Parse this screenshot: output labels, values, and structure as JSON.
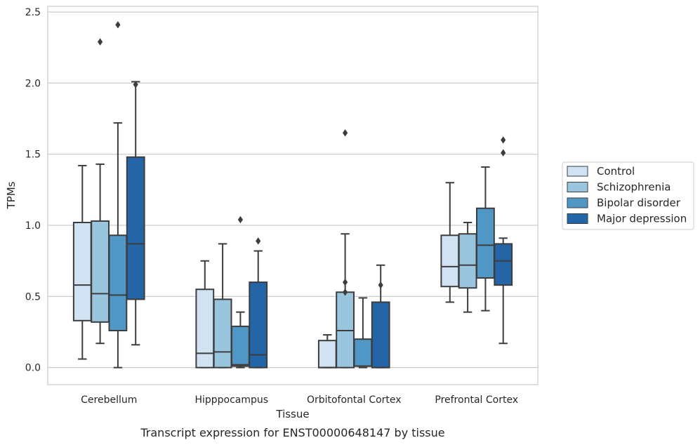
{
  "chart_data": {
    "type": "box",
    "xlabel": "Tissue",
    "ylabel": "TPMs",
    "caption": "Transcript expression for ENST00000648147 by tissue",
    "ylim": [
      -0.12,
      2.54
    ],
    "yticks": [
      0.0,
      0.5,
      1.0,
      1.5,
      2.0,
      2.5
    ],
    "ytick_labels": [
      "0.0",
      "0.5",
      "1.0",
      "1.5",
      "2.0",
      "2.5"
    ],
    "grid": "horizontal",
    "legend_position": "outside-right",
    "categories": [
      "Cerebellum",
      "Hipppocampus",
      "Orbitofontal Cortex",
      "Prefrontal Cortex"
    ],
    "series": [
      {
        "name": "Control",
        "color": "#d1e2f2",
        "boxes": [
          {
            "whislo": 0.06,
            "q1": 0.33,
            "med": 0.58,
            "q3": 1.02,
            "whishi": 1.42,
            "fliers": []
          },
          {
            "whislo": 0.0,
            "q1": 0.0,
            "med": 0.1,
            "q3": 0.55,
            "whishi": 0.75,
            "fliers": []
          },
          {
            "whislo": 0.0,
            "q1": 0.0,
            "med": 0.0,
            "q3": 0.19,
            "whishi": 0.23,
            "fliers": []
          },
          {
            "whislo": 0.46,
            "q1": 0.57,
            "med": 0.71,
            "q3": 0.93,
            "whishi": 1.3,
            "fliers": []
          }
        ]
      },
      {
        "name": "Schizophrenia",
        "color": "#9ac5de",
        "boxes": [
          {
            "whislo": 0.17,
            "q1": 0.32,
            "med": 0.52,
            "q3": 1.03,
            "whishi": 1.43,
            "fliers": [
              2.29
            ]
          },
          {
            "whislo": 0.0,
            "q1": 0.0,
            "med": 0.11,
            "q3": 0.48,
            "whishi": 0.87,
            "fliers": []
          },
          {
            "whislo": 0.0,
            "q1": 0.0,
            "med": 0.26,
            "q3": 0.53,
            "whishi": 0.94,
            "fliers": [
              0.53,
              0.6,
              1.65
            ]
          },
          {
            "whislo": 0.39,
            "q1": 0.56,
            "med": 0.72,
            "q3": 0.94,
            "whishi": 1.02,
            "fliers": []
          }
        ]
      },
      {
        "name": "Bipolar disorder",
        "color": "#5097c6",
        "boxes": [
          {
            "whislo": 0.0,
            "q1": 0.26,
            "med": 0.51,
            "q3": 0.93,
            "whishi": 1.72,
            "fliers": [
              2.41
            ]
          },
          {
            "whislo": 0.0,
            "q1": 0.01,
            "med": 0.02,
            "q3": 0.29,
            "whishi": 0.39,
            "fliers": [
              1.04
            ]
          },
          {
            "whislo": 0.0,
            "q1": 0.01,
            "med": 0.01,
            "q3": 0.2,
            "whishi": 0.49,
            "fliers": []
          },
          {
            "whislo": 0.4,
            "q1": 0.63,
            "med": 0.86,
            "q3": 1.12,
            "whishi": 1.41,
            "fliers": []
          }
        ]
      },
      {
        "name": "Major depression",
        "color": "#2465a8",
        "boxes": [
          {
            "whislo": 0.16,
            "q1": 0.48,
            "med": 0.87,
            "q3": 1.48,
            "whishi": 2.01,
            "fliers": [
              1.99
            ]
          },
          {
            "whislo": 0.0,
            "q1": 0.0,
            "med": 0.09,
            "q3": 0.6,
            "whishi": 0.82,
            "fliers": [
              0.89
            ]
          },
          {
            "whislo": 0.0,
            "q1": 0.0,
            "med": 0.0,
            "q3": 0.46,
            "whishi": 0.72,
            "fliers": [
              0.58
            ]
          },
          {
            "whislo": 0.17,
            "q1": 0.58,
            "med": 0.75,
            "q3": 0.87,
            "whishi": 0.91,
            "fliers": [
              1.51,
              1.6
            ]
          }
        ]
      }
    ]
  }
}
